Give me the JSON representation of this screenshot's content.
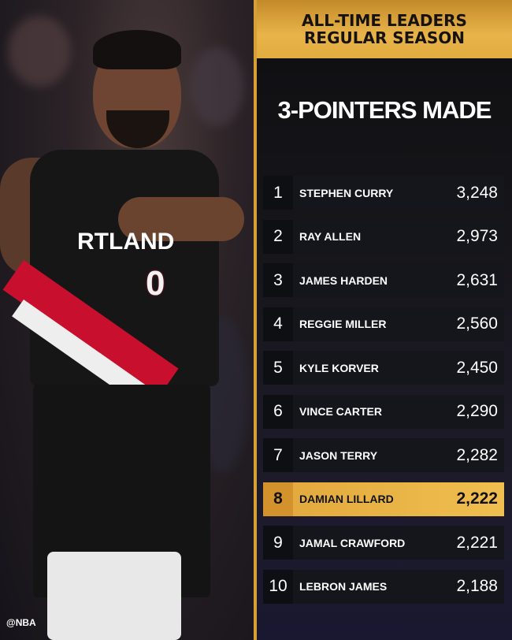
{
  "header": {
    "line1": "ALL-TIME LEADERS",
    "line2": "REGULAR SEASON"
  },
  "title": "3-POINTERS MADE",
  "photo": {
    "jersey_text": "RTLAND",
    "jersey_number": "0",
    "watermark": "@NBA"
  },
  "colors": {
    "gold": "#e8b449",
    "highlight": "#efbf4f",
    "panel": "#15161c"
  },
  "leaders": [
    {
      "rank": "1",
      "name": "STEPHEN CURRY",
      "value": "3,248"
    },
    {
      "rank": "2",
      "name": "RAY ALLEN",
      "value": "2,973"
    },
    {
      "rank": "3",
      "name": "JAMES HARDEN",
      "value": "2,631"
    },
    {
      "rank": "4",
      "name": "REGGIE MILLER",
      "value": "2,560"
    },
    {
      "rank": "5",
      "name": "KYLE KORVER",
      "value": "2,450"
    },
    {
      "rank": "6",
      "name": "VINCE CARTER",
      "value": "2,290"
    },
    {
      "rank": "7",
      "name": "JASON TERRY",
      "value": "2,282"
    },
    {
      "rank": "8",
      "name": "DAMIAN LILLARD",
      "value": "2,222",
      "highlighted": true
    },
    {
      "rank": "9",
      "name": "JAMAL CRAWFORD",
      "value": "2,221"
    },
    {
      "rank": "10",
      "name": "LEBRON JAMES",
      "value": "2,188"
    }
  ]
}
